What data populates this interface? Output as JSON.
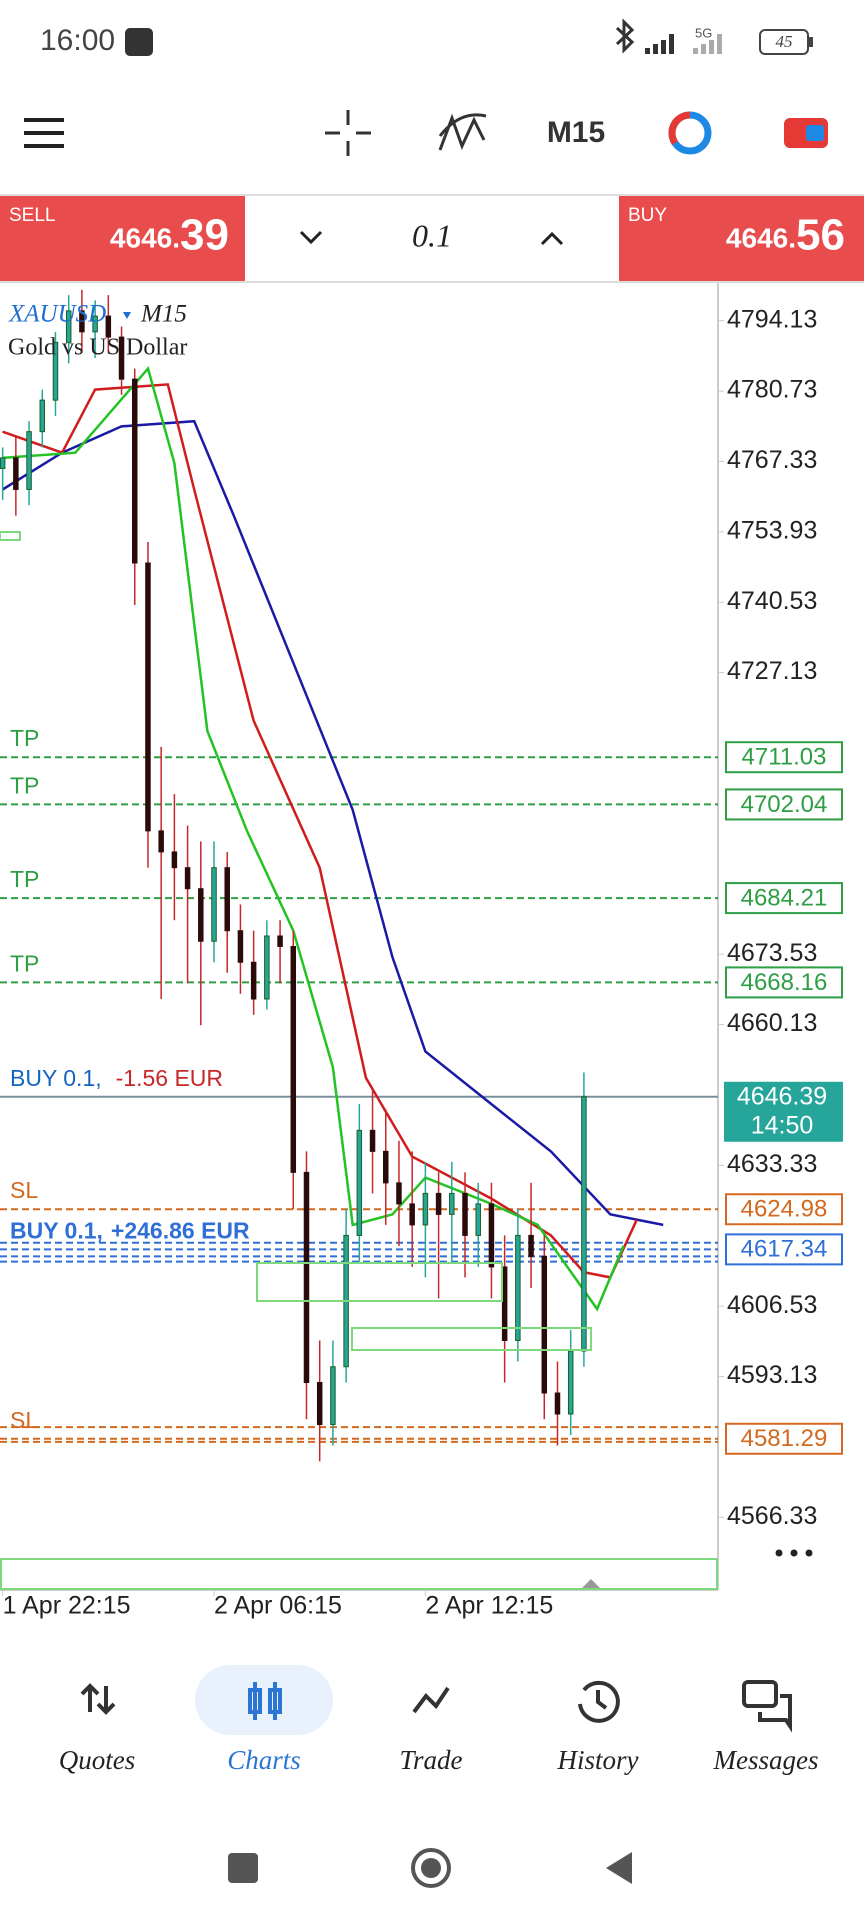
{
  "status_bar": {
    "time": "16:00",
    "network": "5G",
    "battery": "45"
  },
  "toolbar": {
    "timeframe": "M15"
  },
  "trade_bar": {
    "sell": {
      "label": "SELL",
      "price_main": "4646.",
      "price_big": "39"
    },
    "volume": "0.1",
    "buy": {
      "label": "BUY",
      "price_main": "4646.",
      "price_big": "56"
    }
  },
  "chart_data": {
    "type": "candlestick",
    "symbol": "XAUUSD",
    "timeframe": "M15",
    "description": "Gold vs US Dollar",
    "x": [
      0,
      2,
      4,
      6,
      8,
      10,
      12,
      14,
      16,
      18,
      20,
      22,
      24,
      26,
      28,
      30,
      32,
      34,
      36,
      38,
      40,
      42,
      44,
      46,
      48,
      50,
      52,
      54,
      56,
      58,
      60,
      62,
      64,
      66,
      68,
      70,
      72,
      74,
      76,
      78,
      80,
      82,
      84,
      86,
      88
    ],
    "open": [
      4766,
      4768,
      4762,
      4773,
      4779,
      4790,
      4796,
      4792,
      4795,
      4791,
      4783,
      4748,
      4697,
      4693,
      4690,
      4686,
      4676,
      4690,
      4678,
      4672,
      4665,
      4677,
      4675,
      4632,
      4592,
      4584,
      4595,
      4620,
      4640,
      4636,
      4630,
      4626,
      4622,
      4628,
      4624,
      4628,
      4620,
      4626,
      4614,
      4600,
      4620,
      4616,
      4590,
      4586,
      4598
    ],
    "high": [
      4770,
      4772,
      4775,
      4781,
      4792,
      4799,
      4800,
      4798,
      4799,
      4793,
      4785,
      4752,
      4713,
      4704,
      4698,
      4695,
      4695,
      4693,
      4683,
      4678,
      4680,
      4680,
      4678,
      4636,
      4600,
      4600,
      4625,
      4645,
      4648,
      4644,
      4638,
      4636,
      4634,
      4632,
      4634,
      4632,
      4630,
      4630,
      4620,
      4625,
      4630,
      4620,
      4596,
      4602,
      4651
    ],
    "low": [
      4760,
      4757,
      4759,
      4770,
      4776,
      4786,
      4788,
      4787,
      4788,
      4780,
      4740,
      4690,
      4665,
      4680,
      4668,
      4660,
      4672,
      4670,
      4666,
      4662,
      4663,
      4668,
      4625,
      4585,
      4577,
      4580,
      4592,
      4615,
      4628,
      4622,
      4618,
      4614,
      4612,
      4608,
      4615,
      4612,
      4614,
      4608,
      4592,
      4596,
      4610,
      4585,
      4580,
      4582,
      4595
    ],
    "close": [
      4768,
      4762,
      4773,
      4779,
      4790,
      4796,
      4792,
      4795,
      4791,
      4783,
      4748,
      4697,
      4693,
      4690,
      4686,
      4676,
      4690,
      4678,
      4672,
      4665,
      4677,
      4675,
      4632,
      4592,
      4584,
      4595,
      4620,
      4640,
      4636,
      4630,
      4626,
      4622,
      4628,
      4624,
      4628,
      4620,
      4626,
      4614,
      4600,
      4620,
      4616,
      4590,
      4586,
      4598,
      4646.39
    ],
    "up_color": "#26a69a",
    "down_color": "#c62828",
    "series": [
      {
        "color": "#1a1aa6",
        "x": [
          0,
          9,
          18,
          29,
          35,
          44,
          53,
          59,
          64,
          74,
          83,
          92,
          100
        ],
        "values": [
          4762,
          4769,
          4774,
          4775,
          4757,
          4729,
          4701,
          4673,
          4655,
          4645,
          4636,
          4624,
          4622
        ]
      },
      {
        "color": "#d01c1c",
        "x": [
          0,
          9,
          14,
          25,
          29,
          38,
          48,
          55,
          62,
          74,
          83,
          88,
          92,
          96
        ],
        "values": [
          4773,
          4769,
          4781,
          4782,
          4762,
          4718,
          4690,
          4650,
          4635,
          4627,
          4620,
          4613,
          4612,
          4623
        ]
      },
      {
        "color": "#22c322",
        "x": [
          0,
          11,
          22,
          26,
          31,
          37,
          44,
          50,
          53,
          59,
          64,
          74,
          81,
          90,
          94
        ],
        "values": [
          4768,
          4769,
          4785,
          4767,
          4716,
          4697,
          4678,
          4652,
          4622,
          4624,
          4631,
          4626,
          4622,
          4606,
          4618
        ]
      }
    ],
    "xlim": [
      -0.4,
      108.3
    ],
    "xticks": [
      {
        "value": 0,
        "label": "1 Apr 22:15"
      },
      {
        "value": 32,
        "label": "2 Apr 06:15"
      },
      {
        "value": 64,
        "label": "2 Apr 12:15"
      }
    ],
    "ylim": [
      4552.5,
      4801.3
    ],
    "yticks": [
      4794.13,
      4780.73,
      4767.33,
      4753.93,
      4740.53,
      4727.13,
      4673.53,
      4660.13,
      4633.33,
      4606.53,
      4593.13,
      4566.33
    ],
    "levels": [
      {
        "label": "TP",
        "value": 4711.03,
        "color": "#2e9e45"
      },
      {
        "label": "TP",
        "value": 4702.04,
        "color": "#2e9e45"
      },
      {
        "label": "TP",
        "value": 4684.21,
        "color": "#2e9e45"
      },
      {
        "label": "TP",
        "value": 4668.16,
        "color": "#2e9e45"
      },
      {
        "label": "SL",
        "value": 4624.98,
        "color": "#d2691e"
      },
      {
        "label": "BUY 0.1,",
        "profit": "+246.86 EUR",
        "value": 4617.34,
        "color": "#2f6fd6",
        "profit_color": "#2f6fd6"
      },
      {
        "label": "SL",
        "value": 4581.29,
        "color": "#d2691e"
      }
    ],
    "extra_lines": [
      {
        "value": 4618.6,
        "color": "#2f6fd6"
      },
      {
        "value": 4616.0,
        "color": "#2f6fd6"
      },
      {
        "value": 4615.0,
        "color": "#2f6fd6"
      },
      {
        "value": 4583.5,
        "color": "#d2691e"
      },
      {
        "value": 4580.7,
        "color": "#d2691e"
      }
    ],
    "position": {
      "label": "BUY 0.1,",
      "profit": "-1.56 EUR",
      "value": 4646.39,
      "color": "#1565c0",
      "profit_color": "#c62828"
    },
    "bid": {
      "value": 4646.39,
      "time": "14:50",
      "color": "#26a69a"
    }
  },
  "nav": {
    "tabs": [
      "Quotes",
      "Charts",
      "Trade",
      "History",
      "Messages"
    ],
    "active": "Charts"
  }
}
